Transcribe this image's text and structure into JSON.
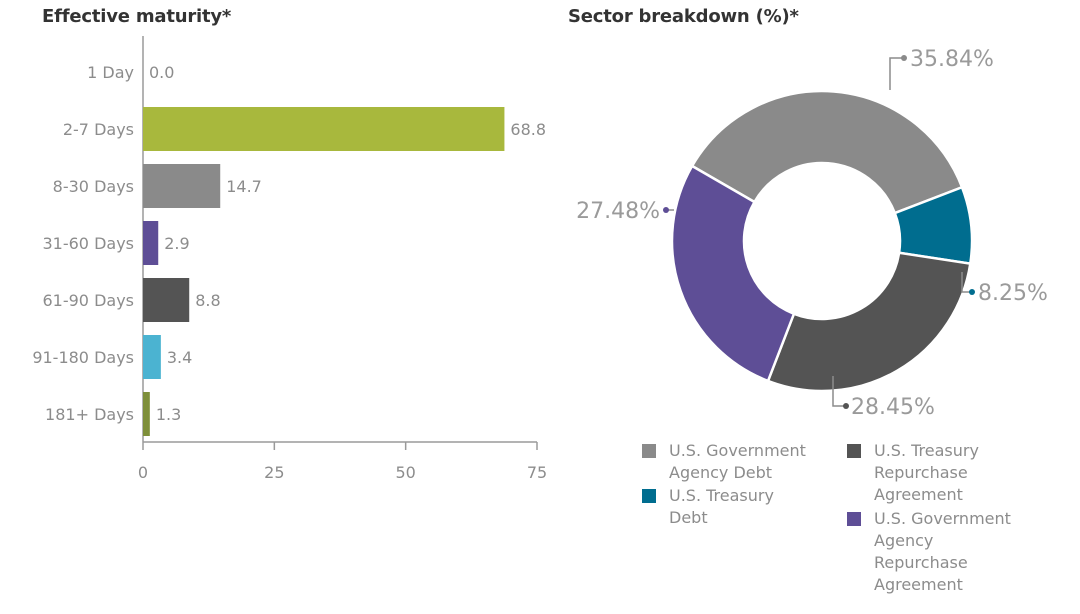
{
  "bar_chart": {
    "title": "Effective maturity*",
    "xticks": [
      "0",
      "25",
      "50",
      "75"
    ]
  },
  "pie_chart": {
    "title": "Sector breakdown (%)*",
    "legend": [
      {
        "label": "U.S. Government\nAgency Debt",
        "color": "#8a8a8a"
      },
      {
        "label": "U.S. Treasury\nRepurchase\nAgreement",
        "color": "#545454"
      },
      {
        "label": "U.S. Treasury\nDebt",
        "color": "#006d8f"
      },
      {
        "label": "U.S. Government\nAgency\nRepurchase\nAgreement",
        "color": "#5e4e96"
      }
    ]
  },
  "chart_data": [
    {
      "type": "bar",
      "orientation": "horizontal",
      "title": "Effective maturity*",
      "categories": [
        "1 Day",
        "2-7 Days",
        "8-30 Days",
        "31-60 Days",
        "61-90 Days",
        "91-180 Days",
        "181+ Days"
      ],
      "values": [
        0.0,
        68.8,
        14.7,
        2.9,
        8.8,
        3.4,
        1.3
      ],
      "value_labels": [
        "0.0",
        "68.8",
        "14.7",
        "2.9",
        "8.8",
        "3.4",
        "1.3"
      ],
      "colors": [
        "#a8b83d",
        "#a8b83d",
        "#8a8a8a",
        "#5e4e96",
        "#545454",
        "#4bb3d1",
        "#7e8f3a"
      ],
      "xlim": [
        0,
        75
      ],
      "xticks": [
        0,
        25,
        50,
        75
      ],
      "xlabel": "",
      "ylabel": ""
    },
    {
      "type": "pie",
      "donut": true,
      "title": "Sector breakdown (%)*",
      "labels": [
        "U.S. Government Agency Debt",
        "U.S. Treasury Debt",
        "U.S. Treasury Repurchase Agreement",
        "U.S. Government Agency Repurchase Agreement"
      ],
      "values": [
        35.84,
        8.25,
        28.45,
        27.48
      ],
      "value_labels": [
        "35.84%",
        "8.25%",
        "28.45%",
        "27.48%"
      ],
      "colors": [
        "#8a8a8a",
        "#006d8f",
        "#545454",
        "#5e4e96"
      ]
    }
  ]
}
